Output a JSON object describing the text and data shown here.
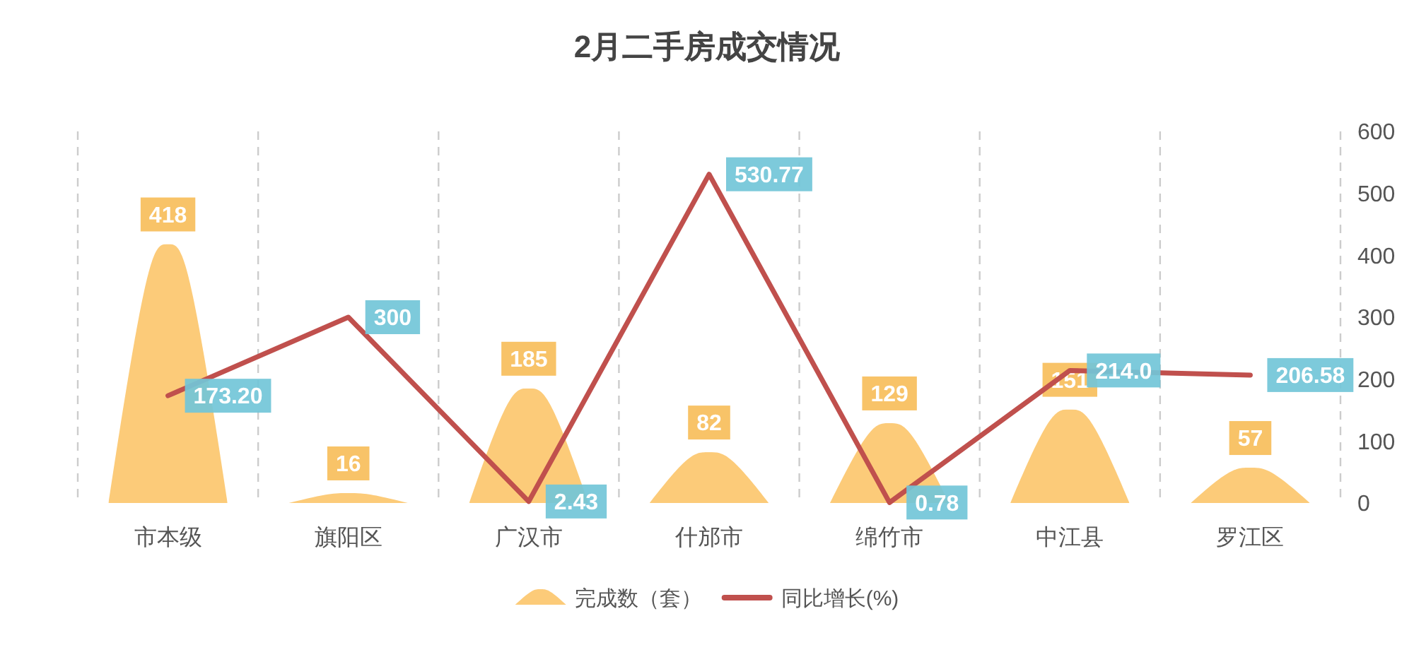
{
  "chart_data": {
    "type": "bar",
    "title": "2月二手房成交情况",
    "categories": [
      "市本级",
      "旗阳区",
      "广汉市",
      "什邡市",
      "绵竹市",
      "中江县",
      "罗江区"
    ],
    "series": [
      {
        "name": "完成数（套）",
        "color": "#fccb79",
        "values": [
          418,
          16,
          185,
          82,
          129,
          151,
          57
        ],
        "value_labels": [
          "418",
          "16",
          "185",
          "82",
          "129",
          "151",
          "57"
        ]
      },
      {
        "name": "同比增长(%)",
        "type": "line",
        "color": "#c0504d",
        "values": [
          173.2,
          300,
          2.43,
          530.77,
          0.78,
          214,
          206.58
        ],
        "value_labels": [
          "173.20",
          "300",
          "2.43",
          "530.77",
          "0.78",
          "214.0",
          "206.58"
        ]
      }
    ],
    "ylim": [
      0,
      600
    ],
    "yticks": [
      0,
      100,
      200,
      300,
      400,
      500,
      600
    ],
    "grid": "x",
    "legend": "bottom",
    "marker": "none"
  }
}
